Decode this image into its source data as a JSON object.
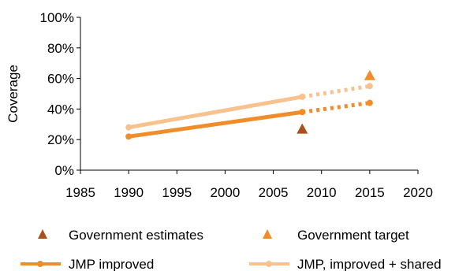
{
  "chart_data": {
    "type": "line",
    "ylabel": "Coverage",
    "xlim": [
      1985,
      2020
    ],
    "ylim": [
      0,
      100
    ],
    "x_ticks": [
      "1985",
      "1990",
      "1995",
      "2000",
      "2005",
      "2010",
      "2015",
      "2020"
    ],
    "y_ticks": [
      "0%",
      "20%",
      "40%",
      "60%",
      "80%",
      "100%"
    ],
    "grid": false,
    "legend_position": "bottom",
    "series": [
      {
        "name": "JMP improved",
        "kind": "line",
        "color": "#f08c2a",
        "solid": [
          {
            "x": 1990,
            "y": 22
          },
          {
            "x": 2008,
            "y": 38
          }
        ],
        "projected": [
          {
            "x": 2008,
            "y": 38
          },
          {
            "x": 2015,
            "y": 44
          }
        ]
      },
      {
        "name": "JMP, improved + shared",
        "kind": "line",
        "color": "#f7c28e",
        "solid": [
          {
            "x": 1990,
            "y": 28
          },
          {
            "x": 2008,
            "y": 48
          }
        ],
        "projected": [
          {
            "x": 2008,
            "y": 48
          },
          {
            "x": 2015,
            "y": 55
          }
        ]
      },
      {
        "name": "Government estimates",
        "kind": "marker",
        "color": "#a8501e",
        "points": [
          {
            "x": 2008,
            "y": 27
          }
        ]
      },
      {
        "name": "Government target",
        "kind": "marker",
        "color": "#f08c2a",
        "points": [
          {
            "x": 2015,
            "y": 62
          }
        ]
      }
    ]
  },
  "legend": {
    "gov_estimates": "Government estimates",
    "gov_target": "Government target",
    "jmp_improved": "JMP improved",
    "jmp_shared": "JMP, improved + shared"
  }
}
